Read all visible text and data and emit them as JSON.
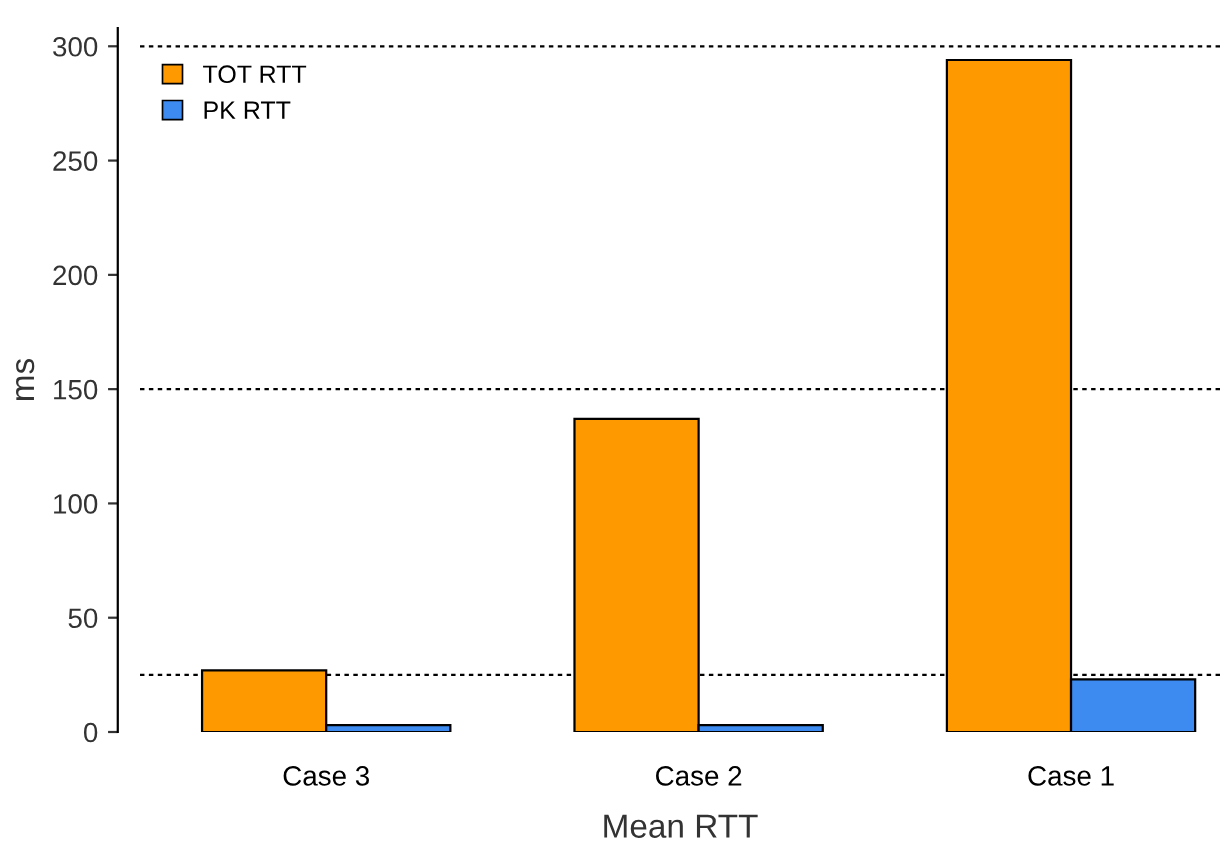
{
  "chart_data": {
    "type": "bar",
    "xlabel": "Mean RTT",
    "ylabel": "ms",
    "categories": [
      "Case 3",
      "Case 2",
      "Case 1"
    ],
    "series": [
      {
        "name": "TOT RTT",
        "color": "#ff9900",
        "values": [
          27,
          137,
          294
        ]
      },
      {
        "name": "PK RTT",
        "color": "#3d8bf0",
        "values": [
          3,
          3,
          23
        ]
      }
    ],
    "ylim": [
      0,
      308
    ],
    "yticks": [
      0,
      50,
      100,
      150,
      200,
      250,
      300
    ],
    "ref_lines": [
      {
        "axis": "y",
        "value": 300,
        "line_style": "dotted",
        "color": "#000000"
      },
      {
        "axis": "y",
        "value": 150,
        "line_style": "dotted",
        "color": "#000000"
      },
      {
        "axis": "y",
        "value": 25,
        "line_style": "dotted",
        "color": "#000000"
      }
    ],
    "legend": "top left",
    "grid": false
  }
}
